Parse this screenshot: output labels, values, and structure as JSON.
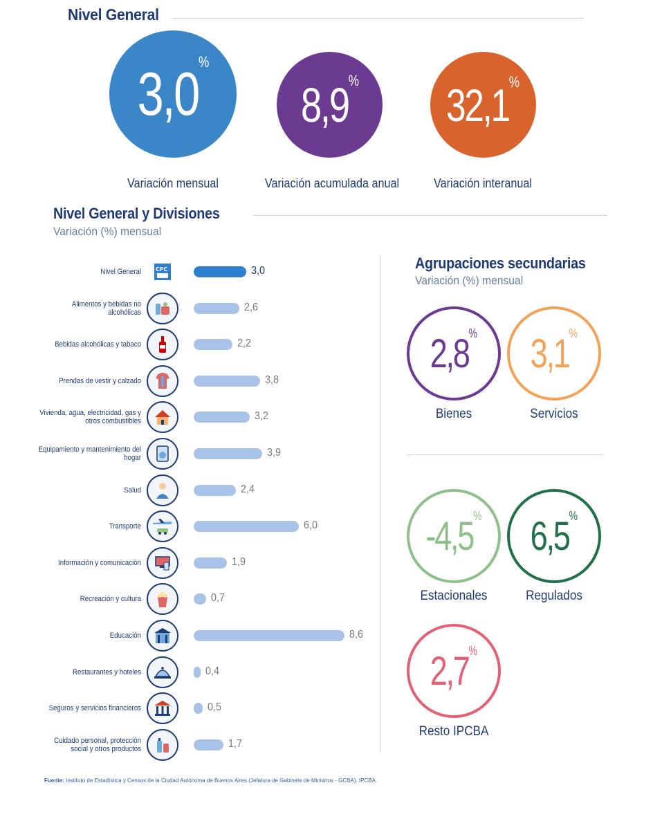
{
  "header": {
    "title": "Nivel General"
  },
  "summary": [
    {
      "value": "3,0",
      "pct": "%",
      "label": "Variación mensual",
      "color": "#3a86c8"
    },
    {
      "value": "8,9",
      "pct": "%",
      "label": "Variación acumulada anual",
      "color": "#6b3a91"
    },
    {
      "value": "32,1",
      "pct": "%",
      "label": "Variación interanual",
      "color": "#d8632c"
    }
  ],
  "divisions": {
    "title": "Nivel General y Divisiones",
    "subtitle": "Variación (%) mensual"
  },
  "chart_data": {
    "type": "bar",
    "orientation": "horizontal",
    "title": "Nivel General y Divisiones",
    "subtitle": "Variación (%) mensual",
    "categories": [
      "Nivel General",
      "Alimentos y bebidas no alcohólicas",
      "Bebidas alcohólicas y tabaco",
      "Prendas de vestir y calzado",
      "Vivienda, agua, electricidad, gas y otros combustibles",
      "Equipamiento y mantenimiento del hogar",
      "Salud",
      "Transporte",
      "Información y comunicación",
      "Recreación y cultura",
      "Educación",
      "Restaurantes y hoteles",
      "Seguros y servicios financieros",
      "Cuidado personal, protección social y otros productos"
    ],
    "values": [
      3.0,
      2.6,
      2.2,
      3.8,
      3.2,
      3.9,
      2.4,
      6.0,
      1.9,
      0.7,
      8.6,
      0.4,
      0.5,
      1.7
    ],
    "value_labels": [
      "3,0",
      "2,6",
      "2,2",
      "3,8",
      "3,2",
      "3,9",
      "2,4",
      "6,0",
      "1,9",
      "0,7",
      "8,6",
      "0,4",
      "0,5",
      "1,7"
    ],
    "icons": [
      "ipcba-logo-icon",
      "groceries-icon",
      "wine-bottle-icon",
      "clothing-icon",
      "house-icon",
      "washing-machine-icon",
      "doctor-icon",
      "airplane-car-icon",
      "computer-icon",
      "popcorn-icon",
      "school-building-icon",
      "cloche-icon",
      "bank-icon",
      "personal-care-icon"
    ],
    "highlight_index": 0,
    "xlim": [
      0,
      8.6
    ],
    "colors": {
      "highlight": "#2f7fd0",
      "bar": "#a9c3e8"
    }
  },
  "secondary": {
    "title": "Agrupaciones secundarias",
    "subtitle": "Variación (%) mensual",
    "items": [
      {
        "value": "2,8",
        "pct": "%",
        "label": "Bienes",
        "color": "#6b3a91"
      },
      {
        "value": "3,1",
        "pct": "%",
        "label": "Servicios",
        "color": "#f2a35a"
      },
      {
        "value": "-4,5",
        "pct": "%",
        "label": "Estacionales",
        "color": "#8fbf8a"
      },
      {
        "value": "6,5",
        "pct": "%",
        "label": "Regulados",
        "color": "#22704a"
      },
      {
        "value": "2,7",
        "pct": "%",
        "label": "Resto IPCBA",
        "color": "#e06274"
      }
    ]
  },
  "source": {
    "label": "Fuente:",
    "text": "Instituto de Estadística y Censos de la Ciudad Autónoma de Buenos Aires (Jefatura de Gabinete de Ministros - GCBA). IPCBA."
  }
}
